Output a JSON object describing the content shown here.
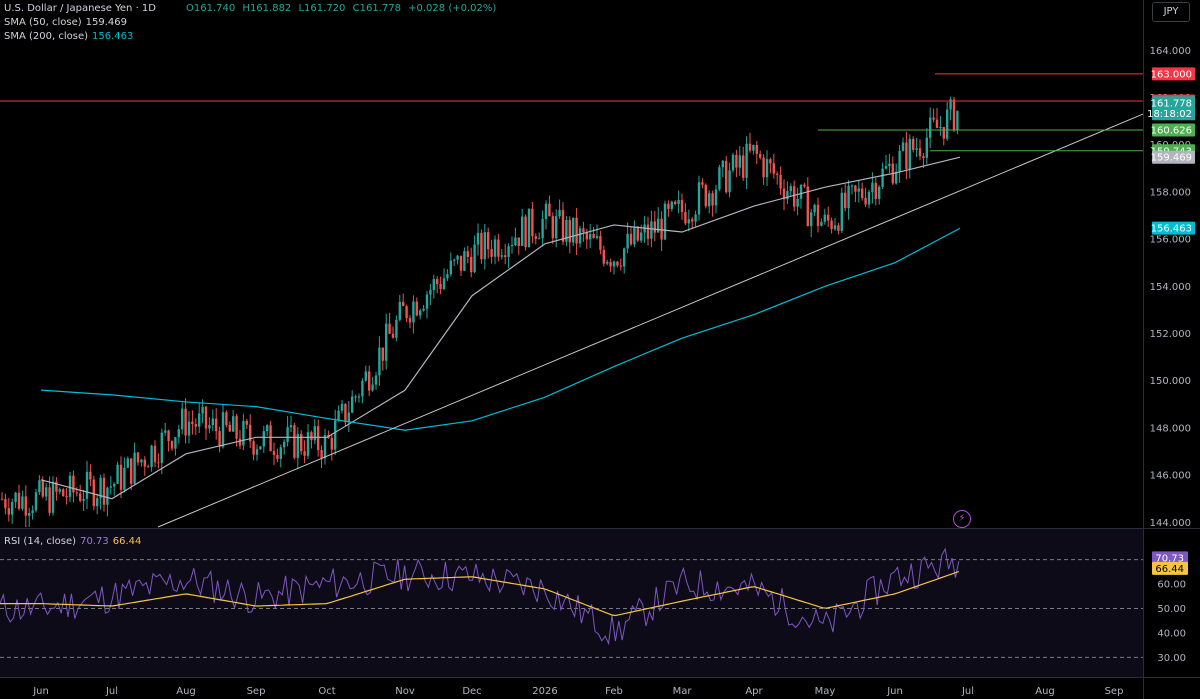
{
  "header": {
    "symbol_title": "U.S. Dollar / Japanese Yen · 1D",
    "open": "O161.740",
    "high": "H161.882",
    "low": "L161.720",
    "close": "C161.778",
    "change": "+0.028 (+0.02%)",
    "sma50_label": "SMA (50, close)",
    "sma50_value": "159.469",
    "sma200_label": "SMA (200, close)",
    "sma200_value": "156.463",
    "currency_button": "JPY"
  },
  "rsi_legend": {
    "label": "RSI (14, close)",
    "rsi_value": "70.73",
    "ma_value": "66.44"
  },
  "colors": {
    "up": "#26a69a",
    "down": "#ef5350",
    "sma50": "#b2b5be",
    "sma200": "#00bcd4",
    "trendline": "#c8c8c8",
    "resistance": "#f23645",
    "support": "#4caf50",
    "rsi": "#7e57c2",
    "rsi_ma": "#f5c542"
  },
  "chart_data": [
    {
      "type": "candlestick",
      "title": "U.S. Dollar / Japanese Yen · 1D",
      "x_tick_labels": [
        "Jun",
        "Jul",
        "Aug",
        "Sep",
        "Oct",
        "Nov",
        "Dec",
        "2026",
        "Feb",
        "Mar",
        "Apr",
        "May",
        "Jun",
        "Jul",
        "Aug",
        "Sep"
      ],
      "y_tick_labels": [
        "164.000",
        "162.000",
        "160.000",
        "158.000",
        "156.000",
        "154.000",
        "152.000",
        "150.000",
        "148.000",
        "146.000",
        "144.000"
      ],
      "ylim": [
        143.8,
        165.2
      ],
      "close_series_anchors": [
        {
          "x": "Jun",
          "y": 145.0
        },
        {
          "x": "Jul",
          "y": 145.6
        },
        {
          "x": "Aug",
          "y": 148.3
        },
        {
          "x": "Sep",
          "y": 147.5
        },
        {
          "x": "Oct",
          "y": 147.3
        },
        {
          "x": "Nov",
          "y": 153.0
        },
        {
          "x": "Dec",
          "y": 155.4
        },
        {
          "x": "2026",
          "y": 156.8
        },
        {
          "x": "Feb",
          "y": 155.3
        },
        {
          "x": "Mar",
          "y": 157.2
        },
        {
          "x": "Apr",
          "y": 159.6
        },
        {
          "x": "May",
          "y": 156.6
        },
        {
          "x": "Jun",
          "y": 159.2
        },
        {
          "x": "Jul",
          "y": 161.8
        }
      ],
      "series": [
        {
          "name": "SMA (50, close)",
          "last_value": 159.469,
          "points": [
            {
              "x": "Jun",
              "y": 145.8
            },
            {
              "x": "Jul",
              "y": 145.0
            },
            {
              "x": "Aug",
              "y": 146.9
            },
            {
              "x": "Sep",
              "y": 147.6
            },
            {
              "x": "Oct",
              "y": 147.6
            },
            {
              "x": "Nov",
              "y": 149.6
            },
            {
              "x": "Dec",
              "y": 153.6
            },
            {
              "x": "2026",
              "y": 155.8
            },
            {
              "x": "Feb",
              "y": 156.6
            },
            {
              "x": "Mar",
              "y": 156.3
            },
            {
              "x": "Apr",
              "y": 157.4
            },
            {
              "x": "May",
              "y": 158.2
            },
            {
              "x": "Jun",
              "y": 158.8
            },
            {
              "x": "Jul",
              "y": 159.47
            }
          ]
        },
        {
          "name": "SMA (200, close)",
          "last_value": 156.463,
          "points": [
            {
              "x": "Jun",
              "y": 149.6
            },
            {
              "x": "Jul",
              "y": 149.4
            },
            {
              "x": "Aug",
              "y": 149.1
            },
            {
              "x": "Sep",
              "y": 148.9
            },
            {
              "x": "Oct",
              "y": 148.4
            },
            {
              "x": "Nov",
              "y": 147.9
            },
            {
              "x": "Dec",
              "y": 148.3
            },
            {
              "x": "2026",
              "y": 149.3
            },
            {
              "x": "Feb",
              "y": 150.6
            },
            {
              "x": "Mar",
              "y": 151.8
            },
            {
              "x": "Apr",
              "y": 152.8
            },
            {
              "x": "May",
              "y": 154.0
            },
            {
              "x": "Jun",
              "y": 155.0
            },
            {
              "x": "Jul",
              "y": 156.46
            }
          ]
        }
      ],
      "horizontal_levels": [
        {
          "label": "163.000",
          "value": 163.0,
          "color": "#f23645"
        },
        {
          "label": "161.850",
          "value": 161.85,
          "color": "#f23645"
        },
        {
          "label": "161.778",
          "value": 161.778,
          "color": "#26a69a",
          "countdown": "18:18:02"
        },
        {
          "label": "160.626",
          "value": 160.626,
          "color": "#4caf50"
        },
        {
          "label": "160.000",
          "value": 160.0,
          "color": "#4caf50"
        },
        {
          "label": "159.743",
          "value": 159.743,
          "color": "#4caf50"
        },
        {
          "label": "159.469",
          "value": 159.469,
          "color": "#b2b5be"
        },
        {
          "label": "156.463",
          "value": 156.463,
          "color": "#00bcd4"
        }
      ],
      "trendline": {
        "from": {
          "x": "Jul",
          "y": 143.8
        },
        "to": {
          "x": "Sep",
          "y": 161.3
        }
      },
      "grid": false
    },
    {
      "type": "line",
      "title": "RSI (14, close)",
      "y_tick_labels": [
        "70.00",
        "60.00",
        "50.00",
        "40.00",
        "30.00"
      ],
      "ylim": [
        24,
        76
      ],
      "reference_levels": [
        70,
        50,
        30
      ],
      "series": [
        {
          "name": "RSI",
          "last_value": 70.73,
          "points": [
            {
              "x": "Jun",
              "y": 50
            },
            {
              "x": "Jul",
              "y": 55
            },
            {
              "x": "Aug",
              "y": 62
            },
            {
              "x": "Sep",
              "y": 54
            },
            {
              "x": "Oct",
              "y": 60
            },
            {
              "x": "Nov",
              "y": 64
            },
            {
              "x": "Dec",
              "y": 63
            },
            {
              "x": "2026",
              "y": 58
            },
            {
              "x": "Feb",
              "y": 40
            },
            {
              "x": "Mar",
              "y": 60
            },
            {
              "x": "Apr",
              "y": 58
            },
            {
              "x": "May",
              "y": 42
            },
            {
              "x": "Jun",
              "y": 63
            },
            {
              "x": "Jul",
              "y": 70.73
            }
          ]
        },
        {
          "name": "RSI-based MA",
          "last_value": 66.44,
          "points": [
            {
              "x": "Jun",
              "y": 52
            },
            {
              "x": "Jul",
              "y": 51
            },
            {
              "x": "Aug",
              "y": 56
            },
            {
              "x": "Sep",
              "y": 51
            },
            {
              "x": "Oct",
              "y": 52
            },
            {
              "x": "Nov",
              "y": 62
            },
            {
              "x": "Dec",
              "y": 63
            },
            {
              "x": "2026",
              "y": 58
            },
            {
              "x": "Feb",
              "y": 47
            },
            {
              "x": "Mar",
              "y": 53
            },
            {
              "x": "Apr",
              "y": 59
            },
            {
              "x": "May",
              "y": 50
            },
            {
              "x": "Jun",
              "y": 56
            },
            {
              "x": "Jul",
              "y": 66.44
            }
          ]
        }
      ]
    }
  ]
}
